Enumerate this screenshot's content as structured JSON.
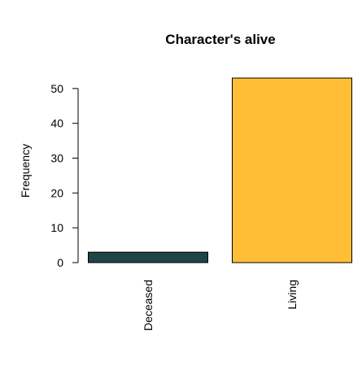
{
  "chart_data": {
    "type": "bar",
    "title": "Character's alive",
    "xlabel": "",
    "ylabel": "Frequency",
    "categories": [
      "Deceased",
      "Living"
    ],
    "values": [
      3,
      53
    ],
    "colors": [
      "#1E4545",
      "#FFBE35"
    ],
    "yticks": [
      0,
      10,
      20,
      30,
      40,
      50
    ],
    "ylim": [
      0,
      53
    ],
    "grid": false,
    "legend": "none"
  }
}
